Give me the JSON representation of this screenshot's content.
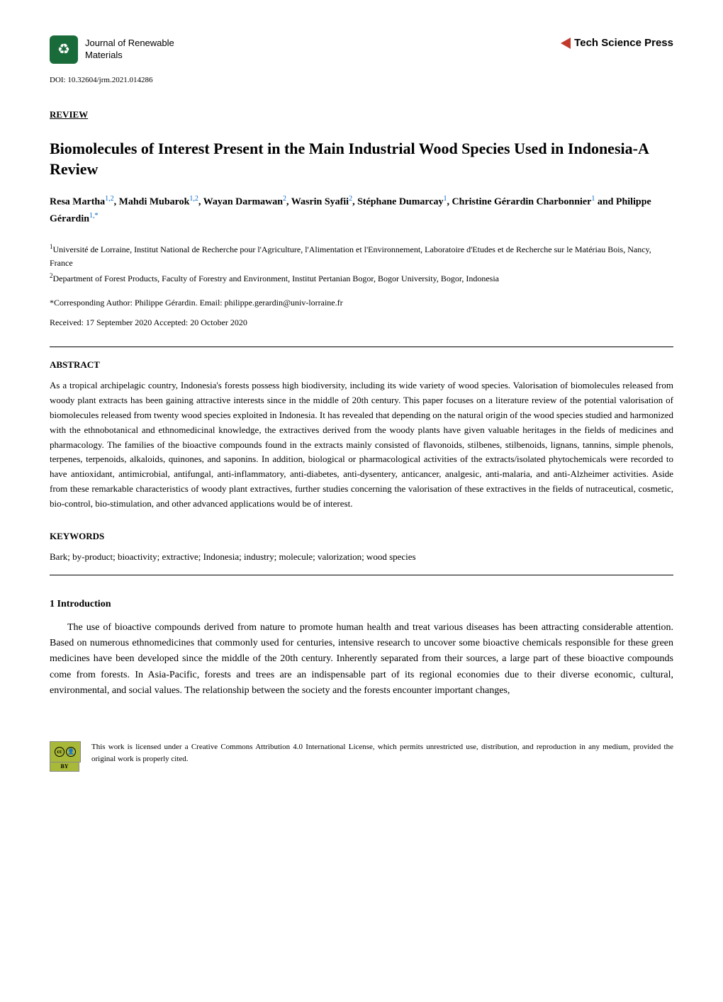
{
  "header": {
    "journal_name_line1": "Journal of Renewable",
    "journal_name_line2": "Materials",
    "publisher_prefix": "Tech",
    "publisher_rest": " Science Press",
    "logo_icon": "♻",
    "logo_bg_color": "#1a6b3a",
    "arrow_color": "#c0392b"
  },
  "doi": "DOI: 10.32604/jrm.2021.014286",
  "article_type": "REVIEW",
  "title": "Biomolecules of Interest Present in the Main Industrial Wood Species Used in Indonesia-A Review",
  "authors_html": "Resa Martha<sup>1,2</sup>, Mahdi Mubarok<sup>1,2</sup>, Wayan Darmawan<sup>2</sup>, Wasrin Syafii<sup>2</sup>, Stéphane Dumarcay<sup>1</sup>, Christine Gérardin Charbonnier<sup>1</sup> and Philippe Gérardin<sup>1,*</sup>",
  "affiliations": [
    {
      "num": "1",
      "text": "Université de Lorraine, Institut National de Recherche pour l'Agriculture, l'Alimentation et l'Environnement, Laboratoire d'Etudes et de Recherche sur le Matériau Bois, Nancy, France"
    },
    {
      "num": "2",
      "text": "Department of Forest Products, Faculty of Forestry and Environment, Institut Pertanian Bogor, Bogor University, Bogor, Indonesia"
    }
  ],
  "corresponding": "*Corresponding Author: Philippe Gérardin. Email: philippe.gerardin@univ-lorraine.fr",
  "dates": "Received: 17 September 2020    Accepted: 20 October 2020",
  "abstract_header": "ABSTRACT",
  "abstract_text": "As a tropical archipelagic country, Indonesia's forests possess high biodiversity, including its wide variety of wood species. Valorisation of biomolecules released from woody plant extracts has been gaining attractive interests since in the middle of 20th century. This paper focuses on a literature review of the potential valorisation of biomolecules released from twenty wood species exploited in Indonesia. It has revealed that depending on the natural origin of the wood species studied and harmonized with the ethnobotanical and ethnomedicinal knowledge, the extractives derived from the woody plants have given valuable heritages in the fields of medicines and pharmacology. The families of the bioactive compounds found in the extracts mainly consisted of flavonoids, stilbenes, stilbenoids, lignans, tannins, simple phenols, terpenes, terpenoids, alkaloids, quinones, and saponins. In addition, biological or pharmacological activities of the extracts/isolated phytochemicals were recorded to have antioxidant, antimicrobial, antifungal, anti-inflammatory, anti-diabetes, anti-dysentery, anticancer, analgesic, anti-malaria, and anti-Alzheimer activities. Aside from these remarkable characteristics of woody plant extractives, further studies concerning the valorisation of these extractives in the fields of nutraceutical, cosmetic, bio-control, bio-stimulation, and other advanced applications would be of interest.",
  "keywords_header": "KEYWORDS",
  "keywords_text": "Bark; by-product; bioactivity; extractive; Indonesia; industry; molecule; valorization; wood species",
  "intro_header": "1 Introduction",
  "intro_text": "The use of bioactive compounds derived from nature to promote human health and treat various diseases has been attracting considerable attention. Based on numerous ethnomedicines that commonly used for centuries, intensive research to uncover some bioactive chemicals responsible for these green medicines have been developed since the middle of the 20th century. Inherently separated from their sources, a large part of these bioactive compounds come from forests. In Asia-Pacific, forests and trees are an indispensable part of its regional economies due to their diverse economic, cultural, environmental, and social values. The relationship between the society and the forests encounter important changes,",
  "footer": {
    "cc_label": "cc",
    "by_label": "BY",
    "license_text": "This work is licensed under a Creative Commons Attribution 4.0 International License, which permits unrestricted use, distribution, and reproduction in any medium, provided the original work is properly cited."
  },
  "colors": {
    "sup_link": "#0066cc",
    "text": "#000000",
    "background": "#ffffff",
    "cc_green": "#a8b838"
  }
}
